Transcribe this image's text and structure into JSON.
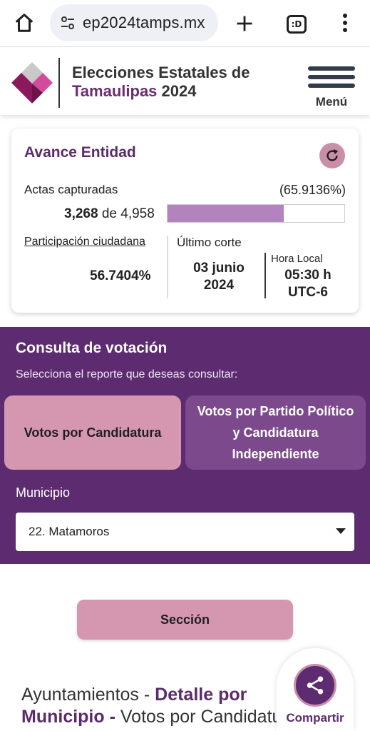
{
  "browser": {
    "url": "ep2024tamps.mx",
    "tab_icon_text": ":D"
  },
  "header": {
    "title_line1": "Elecciones Estatales de",
    "title_highlight": "Tamaulipas",
    "title_year": " 2024",
    "menu_label": "Menú"
  },
  "avance": {
    "title": "Avance Entidad",
    "actas_label": "Actas capturadas",
    "actas_percent": "(65.9136%)",
    "actas_captured": "3,268",
    "actas_of": " de ",
    "actas_total": "4,958",
    "progress_fraction": 0.659136,
    "participacion_label": "Participación ciudadana",
    "participacion_value": "56.7404%",
    "ultimo_corte_label": "Último corte",
    "corte_date_line1": "03 junio",
    "corte_date_line2": "2024",
    "hora_label": "Hora Local",
    "hora_line1": "05:30 h",
    "hora_line2": "UTC-6"
  },
  "consulta": {
    "title": "Consulta de votación",
    "subtitle": "Selecciona el reporte que deseas consultar:",
    "option_candidatura": "Votos por Candidatura",
    "option_partido_line1": "Votos por Partido Político",
    "option_partido_line2": "y Candidatura",
    "option_partido_line3": "Independiente",
    "municipio_label": "Municipio",
    "municipio_value": "22. Matamoros"
  },
  "seccion_button": "Sección",
  "bottom_heading": {
    "part1": "Ayuntamientos - ",
    "part2": "Detalle por",
    "part3": "Municipio -",
    "part4": " Votos por Candidatura"
  },
  "share": {
    "label": "Compartir"
  },
  "colors": {
    "brand_purple": "#5c2b70",
    "accent_pink": "#d597af",
    "progress_fill": "#b383bd"
  },
  "icons": [
    "home-icon",
    "site-settings-icon",
    "plus-icon",
    "tabs-icon",
    "more-vert-icon",
    "logo-icon",
    "hamburger-menu-icon",
    "refresh-icon",
    "dropdown-caret-icon",
    "share-icon"
  ]
}
